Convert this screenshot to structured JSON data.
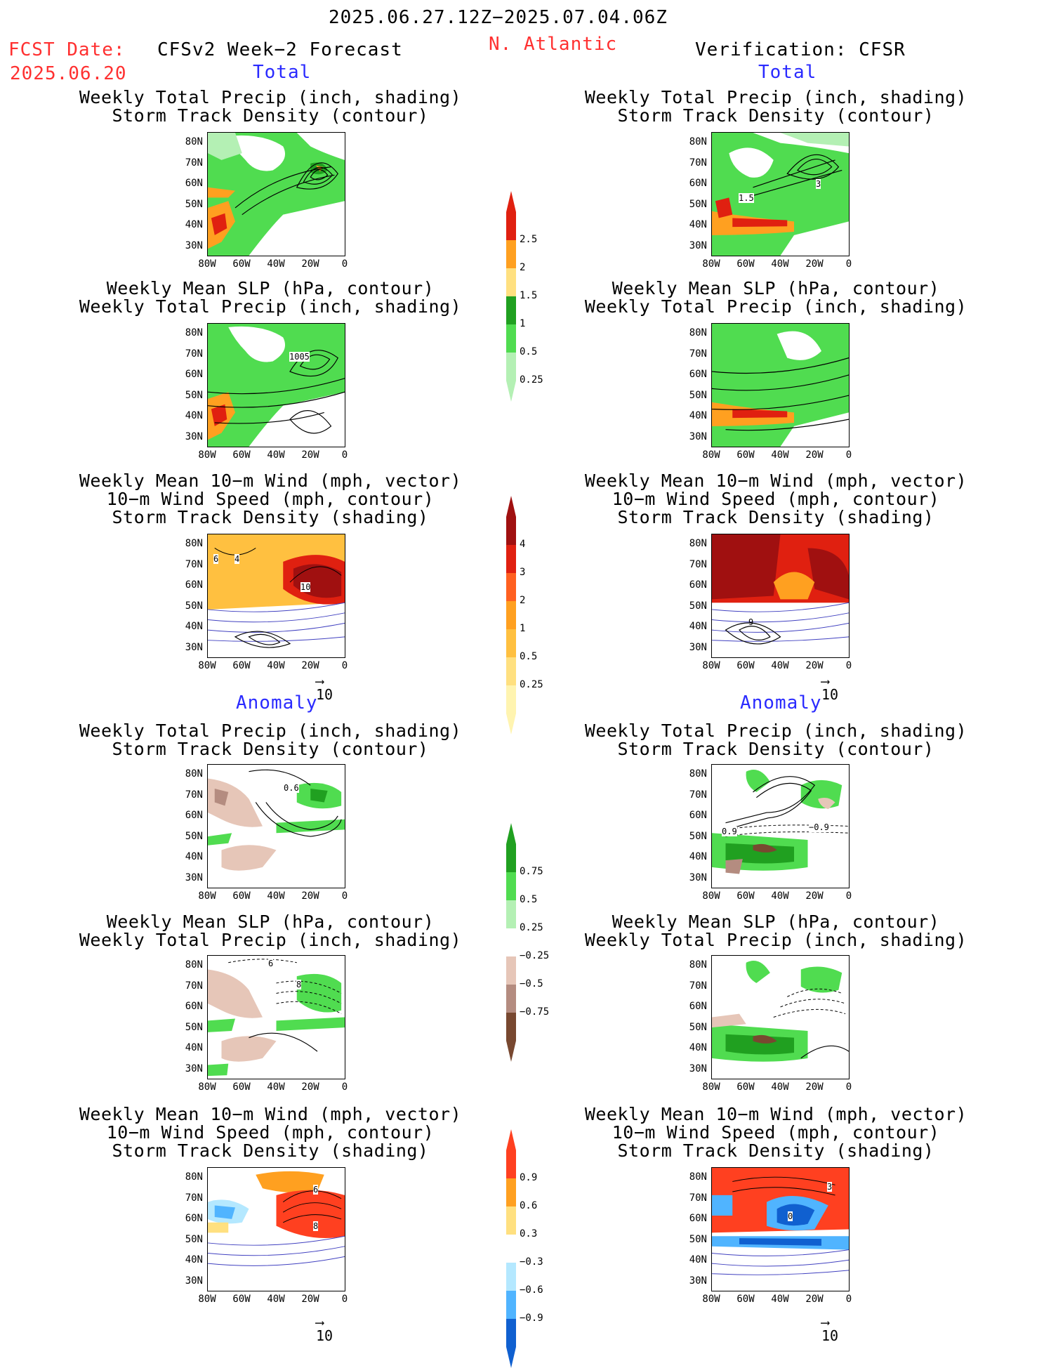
{
  "header": {
    "date_range": "2025.06.27.12Z−2025.07.04.06Z",
    "fcst_label": "FCST Date:",
    "fcst_date": "2025.06.20",
    "left_title": "CFSv2 Week−2 Forecast",
    "region": "N. Atlantic",
    "right_title": "Verification: CFSR"
  },
  "sections": {
    "total": "Total",
    "anomaly": "Anomaly"
  },
  "panel_titles": {
    "precip_storm": "Weekly Total Precip (inch, shading)\nStorm Track Density (contour)",
    "slp_precip": "Weekly Mean SLP (hPa, contour)\nWeekly Total Precip (inch, shading)",
    "wind_storm": "Weekly Mean 10−m Wind (mph, vector)\n10−m Wind Speed (mph, contour)\nStorm Track Density (shading)"
  },
  "axes": {
    "lat_labels": [
      "80N",
      "70N",
      "60N",
      "50N",
      "40N",
      "30N"
    ],
    "lon_labels": [
      "80W",
      "60W",
      "40W",
      "20W",
      "0"
    ]
  },
  "map_labels": {
    "fc_total_slp": "1005",
    "fc_total_wind_a": "6",
    "fc_total_wind_b": "4",
    "fc_total_wind_c": "10",
    "vf_total_precip_a": "1.5",
    "vf_total_precip_b": "3",
    "vf_total_wind": "9",
    "fc_anom_precip": "0.6",
    "vf_anom_precip_a": "0.9",
    "vf_anom_precip_b": "−0.9",
    "fc_anom_slp_a": "6",
    "fc_anom_slp_b": "8",
    "fc_anom_wind_a": "6",
    "fc_anom_wind_b": "8",
    "vf_anom_wind_a": "3",
    "vf_anom_wind_b": "0"
  },
  "vector_ref": "10",
  "colorbars": {
    "precip_total": {
      "labels": [
        "2.5",
        "2",
        "1.5",
        "1",
        "0.5",
        "0.25"
      ],
      "colors": [
        "#e02010",
        "#ffa020",
        "#ffe080",
        "#20a020",
        "#50dc50",
        "#b4f0b4"
      ]
    },
    "storm_total": {
      "labels": [
        "4",
        "3",
        "2",
        "1",
        "0.5",
        "0.25"
      ],
      "colors": [
        "#a01010",
        "#e02010",
        "#ff6020",
        "#ffa020",
        "#ffc040",
        "#ffe080",
        "#fff4b0"
      ]
    },
    "precip_anom": {
      "labels": [
        "0.75",
        "0.5",
        "0.25",
        "−0.25",
        "−0.5",
        "−0.75"
      ],
      "colors": [
        "#20a020",
        "#50dc50",
        "#b4f0b4",
        "#ffffff",
        "#e6c6b8",
        "#b48c80",
        "#784830"
      ]
    },
    "storm_anom": {
      "labels": [
        "0.9",
        "0.6",
        "0.3",
        "−0.3",
        "−0.6",
        "−0.9"
      ],
      "colors": [
        "#ff4020",
        "#ffa020",
        "#ffe080",
        "#ffffff",
        "#b4e8ff",
        "#50b4ff",
        "#1060d0"
      ]
    }
  }
}
